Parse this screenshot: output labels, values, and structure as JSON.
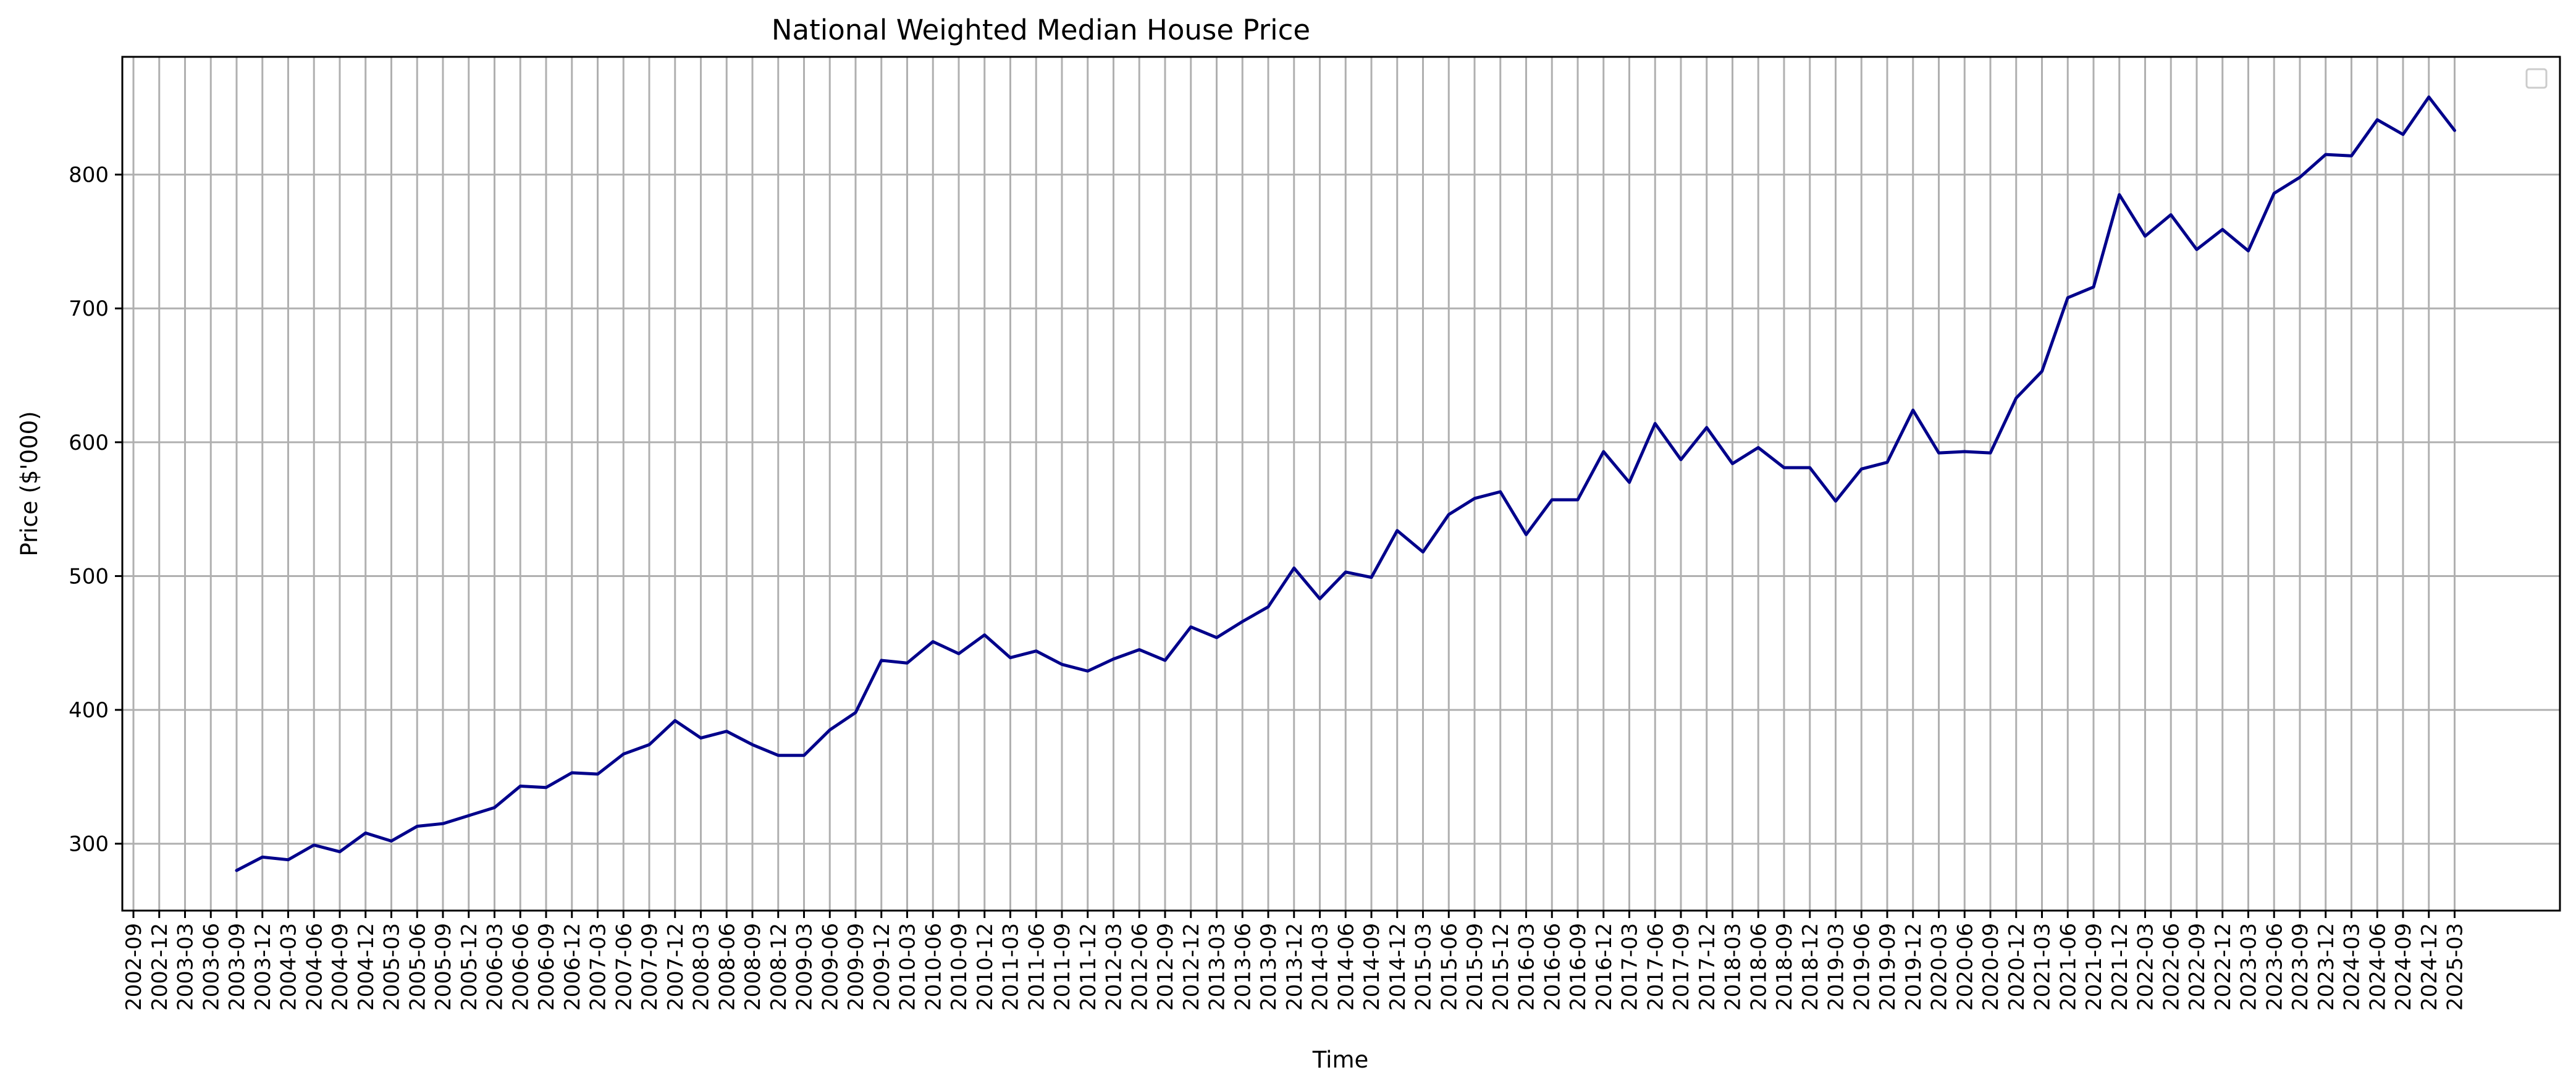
{
  "chart_data": {
    "type": "line",
    "title": "National Weighted Median House Price",
    "xlabel": "Time",
    "ylabel": "Price ($'000)",
    "ylim": [
      250,
      888
    ],
    "yticks": [
      300,
      400,
      500,
      600,
      700,
      800
    ],
    "grid": true,
    "legend": "top-right (empty)",
    "x": [
      "2002-09",
      "2002-12",
      "2003-03",
      "2003-06",
      "2003-09",
      "2003-12",
      "2004-03",
      "2004-06",
      "2004-09",
      "2004-12",
      "2005-03",
      "2005-06",
      "2005-09",
      "2005-12",
      "2006-03",
      "2006-06",
      "2006-09",
      "2006-12",
      "2007-03",
      "2007-06",
      "2007-09",
      "2007-12",
      "2008-03",
      "2008-06",
      "2008-09",
      "2008-12",
      "2009-03",
      "2009-06",
      "2009-09",
      "2009-12",
      "2010-03",
      "2010-06",
      "2010-09",
      "2010-12",
      "2011-03",
      "2011-06",
      "2011-09",
      "2011-12",
      "2012-03",
      "2012-06",
      "2012-09",
      "2012-12",
      "2013-03",
      "2013-06",
      "2013-09",
      "2013-12",
      "2014-03",
      "2014-06",
      "2014-09",
      "2014-12",
      "2015-03",
      "2015-06",
      "2015-09",
      "2015-12",
      "2016-03",
      "2016-06",
      "2016-09",
      "2016-12",
      "2017-03",
      "2017-06",
      "2017-09",
      "2017-12",
      "2018-03",
      "2018-06",
      "2018-09",
      "2018-12",
      "2019-03",
      "2019-06",
      "2019-09",
      "2019-12",
      "2020-03",
      "2020-06",
      "2020-09",
      "2020-12",
      "2021-03",
      "2021-06",
      "2021-09",
      "2021-12",
      "2022-03",
      "2022-06",
      "2022-09",
      "2022-12",
      "2023-03",
      "2023-06",
      "2023-09",
      "2023-12",
      "2024-03",
      "2024-06",
      "2024-09",
      "2024-12",
      "2025-03"
    ],
    "series": [
      {
        "color": "#00008b",
        "values": [
          null,
          null,
          null,
          null,
          280,
          290,
          288,
          299,
          294,
          308,
          302,
          313,
          315,
          321,
          327,
          343,
          342,
          353,
          352,
          367,
          374,
          392,
          379,
          384,
          374,
          366,
          366,
          385,
          398,
          437,
          435,
          451,
          442,
          456,
          439,
          444,
          434,
          429,
          438,
          445,
          437,
          462,
          454,
          466,
          477,
          506,
          483,
          503,
          499,
          534,
          518,
          546,
          558,
          563,
          531,
          557,
          557,
          593,
          570,
          614,
          587,
          611,
          584,
          596,
          581,
          581,
          556,
          580,
          585,
          624,
          592,
          593,
          592,
          633,
          653,
          708,
          716,
          785,
          754,
          770,
          744,
          759,
          743,
          786,
          798,
          815,
          814,
          841,
          830,
          858,
          833
        ]
      }
    ]
  }
}
